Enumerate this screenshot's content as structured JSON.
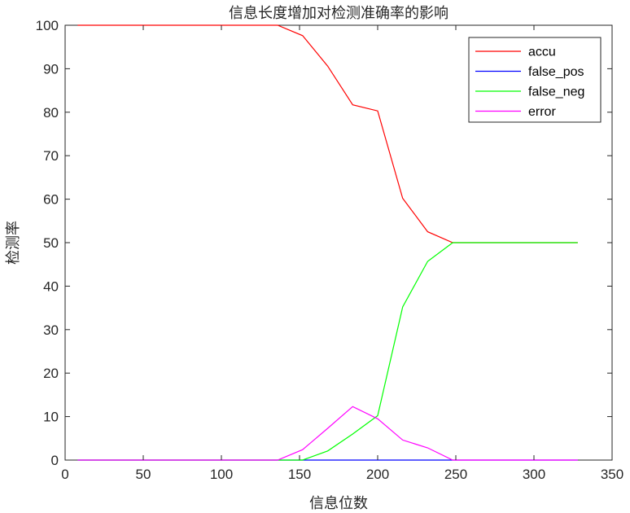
{
  "chart_data": {
    "type": "line",
    "title": "信息长度增加对检测准确率的影响",
    "xlabel": "信息位数",
    "ylabel": "检测率",
    "xlim": [
      0,
      350
    ],
    "ylim": [
      0,
      100
    ],
    "xticks": [
      0,
      50,
      100,
      150,
      200,
      250,
      300,
      350
    ],
    "yticks": [
      0,
      10,
      20,
      30,
      40,
      50,
      60,
      70,
      80,
      90,
      100
    ],
    "grid": false,
    "legend_position": "top-right",
    "series": [
      {
        "name": "accu",
        "color": "#ff0000",
        "x": [
          8,
          136,
          152,
          168,
          184,
          200,
          216,
          232,
          248,
          328
        ],
        "y": [
          100,
          100,
          97.6,
          90.6,
          81.7,
          80.3,
          60.2,
          52.5,
          50,
          50
        ]
      },
      {
        "name": "false_pos",
        "color": "#0000ff",
        "x": [
          8,
          136,
          152,
          168,
          184,
          200,
          216,
          232,
          248,
          328
        ],
        "y": [
          0,
          0,
          0,
          0,
          0,
          0,
          0,
          0,
          0,
          0
        ]
      },
      {
        "name": "false_neg",
        "color": "#00ff00",
        "x": [
          8,
          136,
          152,
          168,
          184,
          200,
          216,
          232,
          248,
          328
        ],
        "y": [
          0,
          0,
          0,
          2.1,
          6,
          10.2,
          35.2,
          45.7,
          50,
          50
        ]
      },
      {
        "name": "error",
        "color": "#ff00ff",
        "x": [
          8,
          136,
          152,
          168,
          184,
          200,
          216,
          232,
          248,
          328
        ],
        "y": [
          0,
          0,
          2.4,
          7.3,
          12.3,
          9.5,
          4.6,
          2.8,
          0,
          0
        ]
      }
    ]
  }
}
